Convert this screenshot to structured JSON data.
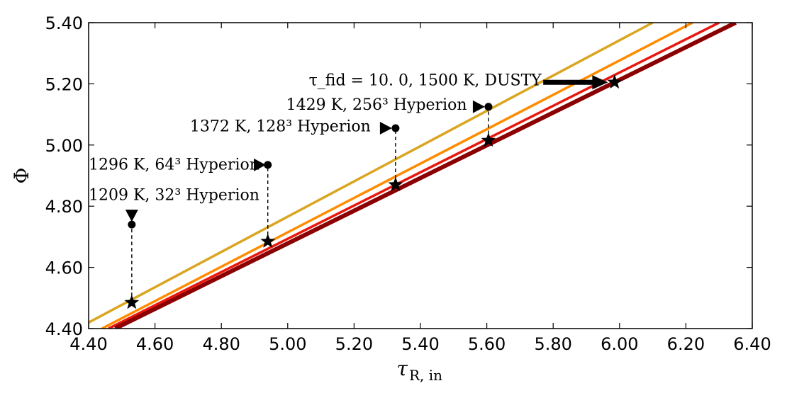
{
  "chart_data": {
    "type": "line",
    "title": "",
    "xlabel": "τ",
    "xlabel_sub": "R, in",
    "ylabel": "Φ",
    "xlim": [
      4.4,
      6.4
    ],
    "ylim": [
      4.4,
      5.4
    ],
    "xticks": [
      "4.40",
      "4.60",
      "4.80",
      "5.00",
      "5.20",
      "5.40",
      "5.60",
      "5.80",
      "6.00",
      "6.20",
      "6.40"
    ],
    "yticks": [
      "4.40",
      "4.60",
      "4.80",
      "5.00",
      "5.20",
      "5.40"
    ],
    "series": [
      {
        "name": "curve-goldenrod",
        "color": "#DAA520",
        "width": 3.5,
        "points": [
          [
            4.4,
            4.42
          ],
          [
            6.1,
            5.4
          ]
        ]
      },
      {
        "name": "curve-orange",
        "color": "#FF8C00",
        "width": 3.5,
        "points": [
          [
            4.44,
            4.4
          ],
          [
            6.22,
            5.4
          ]
        ]
      },
      {
        "name": "curve-red",
        "color": "#E8170E",
        "width": 3.5,
        "points": [
          [
            4.46,
            4.4
          ],
          [
            6.3,
            5.4
          ]
        ]
      },
      {
        "name": "curve-darkred",
        "color": "#8B0000",
        "width": 6,
        "points": [
          [
            4.48,
            4.4
          ],
          [
            4.76,
            4.55
          ],
          [
            6.35,
            5.4
          ]
        ]
      }
    ],
    "connectors": [
      {
        "x": 4.53,
        "y_from": 4.485,
        "y_to": 4.74
      },
      {
        "x": 4.94,
        "y_from": 4.685,
        "y_to": 4.935
      },
      {
        "x": 5.325,
        "y_from": 4.87,
        "y_to": 5.055
      },
      {
        "x": 5.605,
        "y_from": 5.015,
        "y_to": 5.125
      }
    ],
    "stars": [
      {
        "x": 4.53,
        "y": 4.485
      },
      {
        "x": 4.94,
        "y": 4.685
      },
      {
        "x": 5.325,
        "y": 4.87
      },
      {
        "x": 5.605,
        "y": 5.015
      },
      {
        "x": 5.985,
        "y": 5.205
      }
    ],
    "dots": [
      {
        "x": 4.53,
        "y": 4.74
      },
      {
        "x": 4.94,
        "y": 4.935
      },
      {
        "x": 5.325,
        "y": 5.055
      },
      {
        "x": 5.605,
        "y": 5.125
      }
    ],
    "markers": [
      {
        "kind": "down",
        "x": 4.53,
        "y": 4.77
      },
      {
        "kind": "right",
        "x": 4.915,
        "y": 4.935
      },
      {
        "kind": "right",
        "x": 5.295,
        "y": 5.055
      },
      {
        "kind": "right",
        "x": 5.575,
        "y": 5.125
      }
    ],
    "annotations": [
      {
        "label": "1209 K,  32³ Hyperion",
        "x": 4.4,
        "y": 4.82,
        "anchor": "start"
      },
      {
        "label": "1296 K,  64³ Hyperion",
        "x": 4.4,
        "y": 4.92,
        "anchor": "start"
      },
      {
        "label": "1372 K,  128³ Hyperion",
        "x": 5.25,
        "y": 5.045,
        "anchor": "end"
      },
      {
        "label": "1429 K,  256³ Hyperion",
        "x": 5.54,
        "y": 5.115,
        "anchor": "end"
      },
      {
        "label": "τ_fid = 10. 0, 1500 K, DUSTY",
        "x": 5.765,
        "y": 5.195,
        "anchor": "end"
      }
    ],
    "arrow": {
      "x_from": 5.77,
      "x_to": 5.965,
      "y": 5.205
    }
  }
}
